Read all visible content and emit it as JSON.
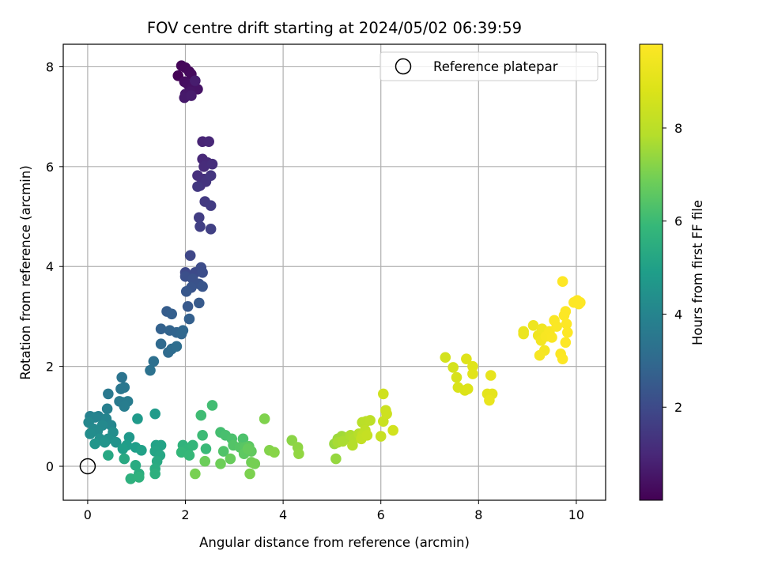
{
  "chart_data": {
    "type": "scatter",
    "title": "FOV centre drift starting at 2024/05/02 06:39:59",
    "xlabel": "Angular distance from reference (arcmin)",
    "ylabel": "Rotation from reference (arcmin)",
    "xlim": [
      -0.5,
      10.6
    ],
    "ylim": [
      -0.68,
      8.45
    ],
    "xticks": [
      "0",
      "2",
      "4",
      "6",
      "8",
      "10"
    ],
    "yticks": [
      "0",
      "2",
      "4",
      "6",
      "8"
    ],
    "grid": true,
    "legend": {
      "position": "top-right",
      "entries": [
        "Reference platepar"
      ]
    },
    "colorbar": {
      "label": "Hours from first FF file",
      "colormap": "viridis",
      "range": [
        0,
        9.8
      ],
      "ticks": [
        "2",
        "4",
        "6",
        "8"
      ]
    },
    "reference_point": {
      "x": 0,
      "y": 0
    },
    "series": [
      {
        "color_by": "hours",
        "points": [
          [
            1.85,
            7.82,
            0.05
          ],
          [
            1.92,
            8.02,
            0.1
          ],
          [
            2.0,
            7.98,
            0.15
          ],
          [
            2.08,
            7.9,
            0.2
          ],
          [
            2.12,
            7.85,
            0.25
          ],
          [
            1.98,
            7.7,
            0.3
          ],
          [
            2.05,
            7.65,
            0.35
          ],
          [
            2.15,
            7.6,
            0.4
          ],
          [
            2.25,
            7.55,
            0.45
          ],
          [
            2.1,
            7.5,
            0.5
          ],
          [
            2.0,
            7.45,
            0.55
          ],
          [
            1.98,
            7.38,
            0.6
          ],
          [
            2.12,
            7.42,
            0.65
          ],
          [
            2.2,
            7.72,
            0.7
          ],
          [
            2.35,
            6.5,
            0.9
          ],
          [
            2.48,
            6.5,
            0.95
          ],
          [
            2.35,
            6.15,
            1.0
          ],
          [
            2.45,
            6.08,
            1.05
          ],
          [
            2.38,
            6.0,
            1.1
          ],
          [
            2.55,
            6.05,
            1.15
          ],
          [
            2.25,
            5.82,
            1.2
          ],
          [
            2.38,
            5.75,
            1.25
          ],
          [
            2.3,
            5.62,
            1.3
          ],
          [
            2.42,
            5.7,
            1.35
          ],
          [
            2.52,
            5.82,
            1.4
          ],
          [
            2.25,
            5.6,
            1.45
          ],
          [
            2.4,
            5.3,
            1.5
          ],
          [
            2.52,
            5.22,
            1.55
          ],
          [
            2.28,
            4.98,
            1.6
          ],
          [
            2.3,
            4.8,
            1.65
          ],
          [
            2.52,
            4.75,
            1.7
          ],
          [
            2.1,
            4.22,
            1.9
          ],
          [
            2.0,
            3.88,
            1.95
          ],
          [
            2.2,
            3.88,
            2.0
          ],
          [
            2.32,
            3.98,
            2.05
          ],
          [
            2.35,
            3.88,
            2.1
          ],
          [
            2.0,
            3.8,
            2.15
          ],
          [
            2.15,
            3.75,
            2.2
          ],
          [
            2.28,
            3.65,
            2.25
          ],
          [
            2.12,
            3.58,
            2.3
          ],
          [
            2.35,
            3.6,
            2.35
          ],
          [
            2.02,
            3.5,
            2.4
          ],
          [
            2.05,
            3.2,
            2.45
          ],
          [
            2.28,
            3.27,
            2.5
          ],
          [
            1.62,
            3.1,
            2.6
          ],
          [
            1.72,
            3.05,
            2.65
          ],
          [
            2.08,
            2.95,
            2.7
          ],
          [
            1.5,
            2.75,
            2.75
          ],
          [
            1.68,
            2.72,
            2.8
          ],
          [
            1.82,
            2.68,
            2.85
          ],
          [
            1.92,
            2.65,
            2.9
          ],
          [
            1.95,
            2.72,
            2.95
          ],
          [
            1.5,
            2.45,
            3.0
          ],
          [
            1.65,
            2.28,
            3.05
          ],
          [
            1.72,
            2.35,
            3.1
          ],
          [
            1.82,
            2.4,
            3.15
          ],
          [
            1.35,
            2.1,
            3.25
          ],
          [
            1.28,
            1.92,
            3.3
          ],
          [
            0.7,
            1.78,
            3.4
          ],
          [
            0.68,
            1.55,
            3.45
          ],
          [
            0.75,
            1.58,
            3.5
          ],
          [
            0.42,
            1.45,
            3.55
          ],
          [
            0.65,
            1.3,
            3.6
          ],
          [
            0.72,
            1.28,
            3.65
          ],
          [
            0.82,
            1.3,
            3.7
          ],
          [
            0.75,
            1.2,
            3.75
          ],
          [
            0.4,
            1.15,
            3.8
          ],
          [
            0.22,
            1.0,
            3.85
          ],
          [
            0.05,
            1.0,
            3.9
          ],
          [
            0.15,
            0.98,
            3.95
          ],
          [
            0.38,
            0.95,
            4.0
          ],
          [
            0.48,
            0.82,
            4.05
          ],
          [
            0.02,
            0.88,
            4.1
          ],
          [
            0.3,
            0.82,
            4.15
          ],
          [
            0.12,
            0.75,
            4.2
          ],
          [
            0.2,
            0.7,
            4.25
          ],
          [
            0.05,
            0.65,
            4.3
          ],
          [
            0.52,
            0.68,
            4.35
          ],
          [
            0.25,
            0.55,
            4.4
          ],
          [
            0.42,
            0.55,
            4.45
          ],
          [
            0.58,
            0.48,
            4.5
          ],
          [
            0.35,
            0.48,
            4.55
          ],
          [
            0.15,
            0.45,
            4.6
          ],
          [
            0.85,
            0.58,
            4.7
          ],
          [
            1.02,
            0.95,
            4.75
          ],
          [
            1.38,
            1.05,
            4.8
          ],
          [
            0.8,
            0.42,
            4.85
          ],
          [
            0.98,
            0.38,
            4.9
          ],
          [
            0.72,
            0.35,
            4.95
          ],
          [
            1.1,
            0.32,
            5.0
          ],
          [
            1.4,
            0.42,
            5.05
          ],
          [
            1.5,
            0.42,
            5.1
          ],
          [
            1.38,
            0.3,
            5.15
          ],
          [
            1.48,
            0.22,
            5.2
          ],
          [
            0.42,
            0.22,
            5.25
          ],
          [
            0.75,
            0.15,
            5.3
          ],
          [
            1.42,
            0.1,
            5.35
          ],
          [
            0.98,
            0.02,
            5.4
          ],
          [
            1.38,
            -0.05,
            5.45
          ],
          [
            1.05,
            -0.15,
            5.5
          ],
          [
            1.38,
            -0.15,
            5.55
          ],
          [
            0.88,
            -0.25,
            5.6
          ],
          [
            1.05,
            -0.22,
            5.65
          ],
          [
            1.95,
            0.42,
            5.7
          ],
          [
            2.05,
            0.35,
            5.75
          ],
          [
            2.15,
            0.42,
            5.8
          ],
          [
            1.92,
            0.28,
            5.85
          ],
          [
            2.08,
            0.22,
            5.9
          ],
          [
            2.42,
            0.35,
            5.95
          ],
          [
            2.35,
            0.62,
            6.0
          ],
          [
            2.32,
            1.02,
            6.05
          ],
          [
            2.55,
            1.22,
            6.1
          ],
          [
            2.72,
            0.68,
            6.15
          ],
          [
            2.82,
            0.62,
            6.2
          ],
          [
            2.95,
            0.55,
            6.25
          ],
          [
            3.18,
            0.55,
            6.3
          ],
          [
            2.78,
            0.3,
            6.35
          ],
          [
            2.98,
            0.42,
            6.4
          ],
          [
            3.12,
            0.38,
            6.45
          ],
          [
            3.22,
            0.38,
            6.5
          ],
          [
            3.3,
            0.4,
            6.55
          ],
          [
            3.2,
            0.25,
            6.6
          ],
          [
            3.35,
            0.3,
            6.65
          ],
          [
            3.28,
            0.35,
            6.7
          ],
          [
            2.92,
            0.15,
            6.75
          ],
          [
            2.4,
            0.1,
            6.8
          ],
          [
            2.72,
            0.05,
            6.85
          ],
          [
            3.35,
            0.08,
            6.9
          ],
          [
            3.42,
            0.05,
            6.95
          ],
          [
            2.2,
            -0.15,
            7.0
          ],
          [
            3.32,
            -0.15,
            7.05
          ],
          [
            3.62,
            0.95,
            7.1
          ],
          [
            3.72,
            0.32,
            7.15
          ],
          [
            3.82,
            0.28,
            7.2
          ],
          [
            4.18,
            0.52,
            7.25
          ],
          [
            4.3,
            0.38,
            7.3
          ],
          [
            4.32,
            0.25,
            7.35
          ],
          [
            5.08,
            0.15,
            7.4
          ],
          [
            5.05,
            0.45,
            7.45
          ],
          [
            5.12,
            0.55,
            7.5
          ],
          [
            5.2,
            0.6,
            7.55
          ],
          [
            5.3,
            0.58,
            7.6
          ],
          [
            5.12,
            0.48,
            7.65
          ],
          [
            5.22,
            0.5,
            7.7
          ],
          [
            5.38,
            0.62,
            7.75
          ],
          [
            5.45,
            0.55,
            7.8
          ],
          [
            5.42,
            0.42,
            7.85
          ],
          [
            5.55,
            0.65,
            7.9
          ],
          [
            5.62,
            0.88,
            7.95
          ],
          [
            5.7,
            0.9,
            8.0
          ],
          [
            5.78,
            0.92,
            8.05
          ],
          [
            5.68,
            0.72,
            8.1
          ],
          [
            5.62,
            0.62,
            8.15
          ],
          [
            5.6,
            0.55,
            8.2
          ],
          [
            5.72,
            0.62,
            8.25
          ],
          [
            6.0,
            0.6,
            8.3
          ],
          [
            6.05,
            0.9,
            8.35
          ],
          [
            6.1,
            1.12,
            8.4
          ],
          [
            6.12,
            1.05,
            8.45
          ],
          [
            6.05,
            1.45,
            8.5
          ],
          [
            6.25,
            0.72,
            8.55
          ]
        ],
        "points_late": [
          [
            7.32,
            2.18,
            8.6
          ],
          [
            7.48,
            1.98,
            8.65
          ],
          [
            7.55,
            1.78,
            8.7
          ],
          [
            7.58,
            1.58,
            8.75
          ],
          [
            7.72,
            1.52,
            8.8
          ],
          [
            7.78,
            1.55,
            8.85
          ],
          [
            7.75,
            2.15,
            8.9
          ],
          [
            7.88,
            2.0,
            8.95
          ],
          [
            7.88,
            1.85,
            9.0
          ],
          [
            8.18,
            1.45,
            9.05
          ],
          [
            8.28,
            1.45,
            9.1
          ],
          [
            8.25,
            1.82,
            9.15
          ],
          [
            8.22,
            1.32,
            9.2
          ],
          [
            8.92,
            2.7,
            9.25
          ],
          [
            8.92,
            2.65,
            9.3
          ],
          [
            9.12,
            2.82,
            9.35
          ],
          [
            9.22,
            2.62,
            9.4
          ],
          [
            9.3,
            2.75,
            9.45
          ],
          [
            9.28,
            2.52,
            9.5
          ],
          [
            9.35,
            2.32,
            9.55
          ],
          [
            9.25,
            2.22,
            9.6
          ],
          [
            9.38,
            2.6,
            9.62
          ],
          [
            9.45,
            2.7,
            9.65
          ],
          [
            9.5,
            2.58,
            9.67
          ],
          [
            9.55,
            2.92,
            9.7
          ],
          [
            9.6,
            2.8,
            9.72
          ],
          [
            9.68,
            2.25,
            9.74
          ],
          [
            9.72,
            2.15,
            9.76
          ],
          [
            9.75,
            3.02,
            9.77
          ],
          [
            9.78,
            3.1,
            9.78
          ],
          [
            9.8,
            2.85,
            9.79
          ],
          [
            9.82,
            2.68,
            9.8
          ],
          [
            9.78,
            2.48,
            9.8
          ],
          [
            9.72,
            3.7,
            9.8
          ],
          [
            9.95,
            3.28,
            9.8
          ],
          [
            10.02,
            3.32,
            9.8
          ],
          [
            10.05,
            3.25,
            9.8
          ],
          [
            10.08,
            3.28,
            9.8
          ]
        ]
      }
    ]
  }
}
